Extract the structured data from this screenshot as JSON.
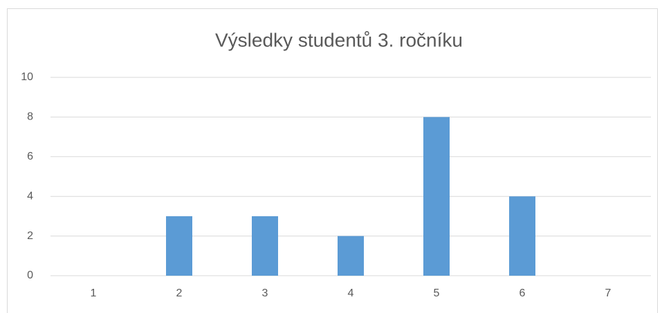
{
  "chart_data": {
    "type": "bar",
    "title": "Výsledky studentů 3. ročníku",
    "categories": [
      "1",
      "2",
      "3",
      "4",
      "5",
      "6",
      "7"
    ],
    "values": [
      0,
      3,
      3,
      2,
      8,
      4,
      0
    ],
    "color": "#5b9bd5",
    "ylim": [
      0,
      10
    ],
    "yticks": [
      0,
      2,
      4,
      6,
      8,
      10
    ],
    "grid": true
  }
}
